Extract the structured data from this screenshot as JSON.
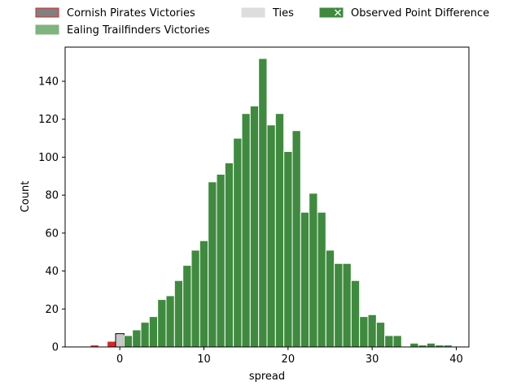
{
  "chart_data": {
    "type": "bar",
    "title": "",
    "xlabel": "spread",
    "ylabel": "Count",
    "xlim": [
      -6.5,
      41.5
    ],
    "ylim": [
      0,
      158
    ],
    "x_ticks": [
      0,
      10,
      20,
      30,
      40
    ],
    "y_ticks": [
      0,
      20,
      40,
      60,
      80,
      100,
      120,
      140
    ],
    "grid": false,
    "legend_placement": "top",
    "bin_width": 1,
    "legend": [
      {
        "label": "Cornish Pirates Victories",
        "fill": "#808080",
        "edge": "#d62728"
      },
      {
        "label": "Ealing Trailfinders Victories",
        "fill": "#7fb37f",
        "edge": "#7fb37f"
      },
      {
        "label": "Ties",
        "fill": "#dddddd",
        "edge": "#dddddd"
      },
      {
        "label": "Observed Point Difference",
        "fill": "#3f8a3f",
        "edge": "#3f8a3f",
        "marker": "x"
      }
    ],
    "series": [
      {
        "name": "Cornish Pirates Victories",
        "fill": "#d62728",
        "bins": [
          {
            "x": -3,
            "count": 1
          },
          {
            "x": -1,
            "count": 3
          }
        ]
      },
      {
        "name": "Ties",
        "fill": "#c8c8c8",
        "bins": [
          {
            "x": 0,
            "count": 7
          }
        ]
      },
      {
        "name": "Ealing Trailfinders Victories",
        "fill": "#3f8a3f",
        "bins": [
          {
            "x": 1,
            "count": 6
          },
          {
            "x": 2,
            "count": 9
          },
          {
            "x": 3,
            "count": 13
          },
          {
            "x": 4,
            "count": 16
          },
          {
            "x": 5,
            "count": 25
          },
          {
            "x": 6,
            "count": 27
          },
          {
            "x": 7,
            "count": 35
          },
          {
            "x": 8,
            "count": 43
          },
          {
            "x": 9,
            "count": 51
          },
          {
            "x": 10,
            "count": 56
          },
          {
            "x": 11,
            "count": 87
          },
          {
            "x": 12,
            "count": 91
          },
          {
            "x": 13,
            "count": 97
          },
          {
            "x": 14,
            "count": 110
          },
          {
            "x": 15,
            "count": 123
          },
          {
            "x": 16,
            "count": 127
          },
          {
            "x": 17,
            "count": 152
          },
          {
            "x": 18,
            "count": 117
          },
          {
            "x": 19,
            "count": 123
          },
          {
            "x": 20,
            "count": 103
          },
          {
            "x": 21,
            "count": 114
          },
          {
            "x": 22,
            "count": 71
          },
          {
            "x": 23,
            "count": 81
          },
          {
            "x": 24,
            "count": 71
          },
          {
            "x": 25,
            "count": 51
          },
          {
            "x": 26,
            "count": 44
          },
          {
            "x": 27,
            "count": 44
          },
          {
            "x": 28,
            "count": 35
          },
          {
            "x": 29,
            "count": 16
          },
          {
            "x": 30,
            "count": 17
          },
          {
            "x": 31,
            "count": 13
          },
          {
            "x": 32,
            "count": 6
          },
          {
            "x": 33,
            "count": 6
          },
          {
            "x": 35,
            "count": 2
          },
          {
            "x": 36,
            "count": 1
          },
          {
            "x": 37,
            "count": 2
          },
          {
            "x": 38,
            "count": 1
          },
          {
            "x": 39,
            "count": 1
          }
        ]
      }
    ]
  }
}
